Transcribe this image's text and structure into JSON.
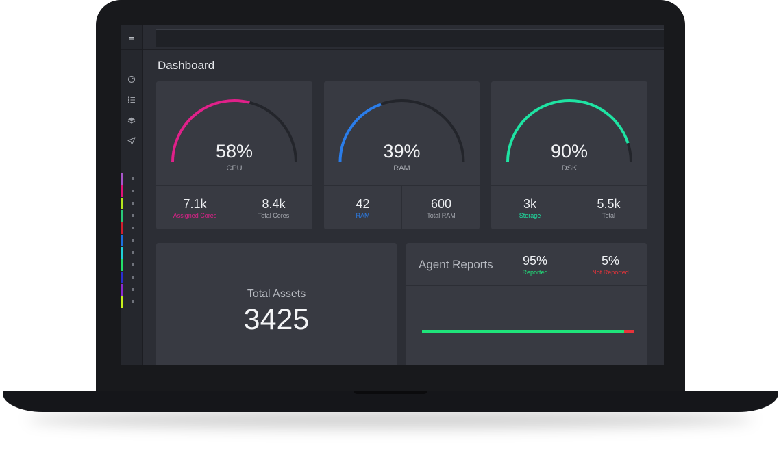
{
  "page": {
    "title": "Dashboard",
    "search": {
      "value": ""
    }
  },
  "sidebar": {
    "menu_icon": "≡",
    "nav_icons": [
      "gauge-icon",
      "list-icon",
      "layers-icon",
      "send-icon"
    ],
    "color_items": [
      {
        "color": "#a855c9"
      },
      {
        "color": "#e0137a"
      },
      {
        "color": "#b5e61d"
      },
      {
        "color": "#29c97a"
      },
      {
        "color": "#d11f2f"
      },
      {
        "color": "#1e6fe0"
      },
      {
        "color": "#1fd2d8"
      },
      {
        "color": "#23e06b"
      },
      {
        "color": "#2b2fd1"
      },
      {
        "color": "#8a2bd1"
      },
      {
        "color": "#c7f01d"
      }
    ]
  },
  "gauges": [
    {
      "id": "cpu",
      "value": "58%",
      "percent": 58,
      "label": "CPU",
      "color": "#e0218a",
      "stats": [
        {
          "value": "7.1k",
          "label": "Assigned Cores",
          "color": "#e0218a"
        },
        {
          "value": "8.4k",
          "label": "Total Cores",
          "color": "#a6a9b0"
        }
      ]
    },
    {
      "id": "ram",
      "value": "39%",
      "percent": 39,
      "label": "RAM",
      "color": "#2b7de9",
      "stats": [
        {
          "value": "42",
          "label": "RAM",
          "color": "#2b7de9"
        },
        {
          "value": "600",
          "label": "Total RAM",
          "color": "#a6a9b0"
        }
      ]
    },
    {
      "id": "dsk",
      "value": "90%",
      "percent": 90,
      "label": "DSK",
      "color": "#1fe3a3",
      "stats": [
        {
          "value": "3k",
          "label": "Storage",
          "color": "#1fe3a3"
        },
        {
          "value": "5.5k",
          "label": "Total",
          "color": "#a6a9b0"
        }
      ]
    }
  ],
  "total_assets": {
    "label": "Total Assets",
    "value": "3425"
  },
  "agent_reports": {
    "title": "Agent Reports",
    "reported": {
      "value": "95%",
      "label": "Reported",
      "percent": 95,
      "color": "#1fe37a"
    },
    "not_reported": {
      "value": "5%",
      "label": "Not Reported",
      "percent": 5,
      "color": "#e8333a"
    }
  }
}
